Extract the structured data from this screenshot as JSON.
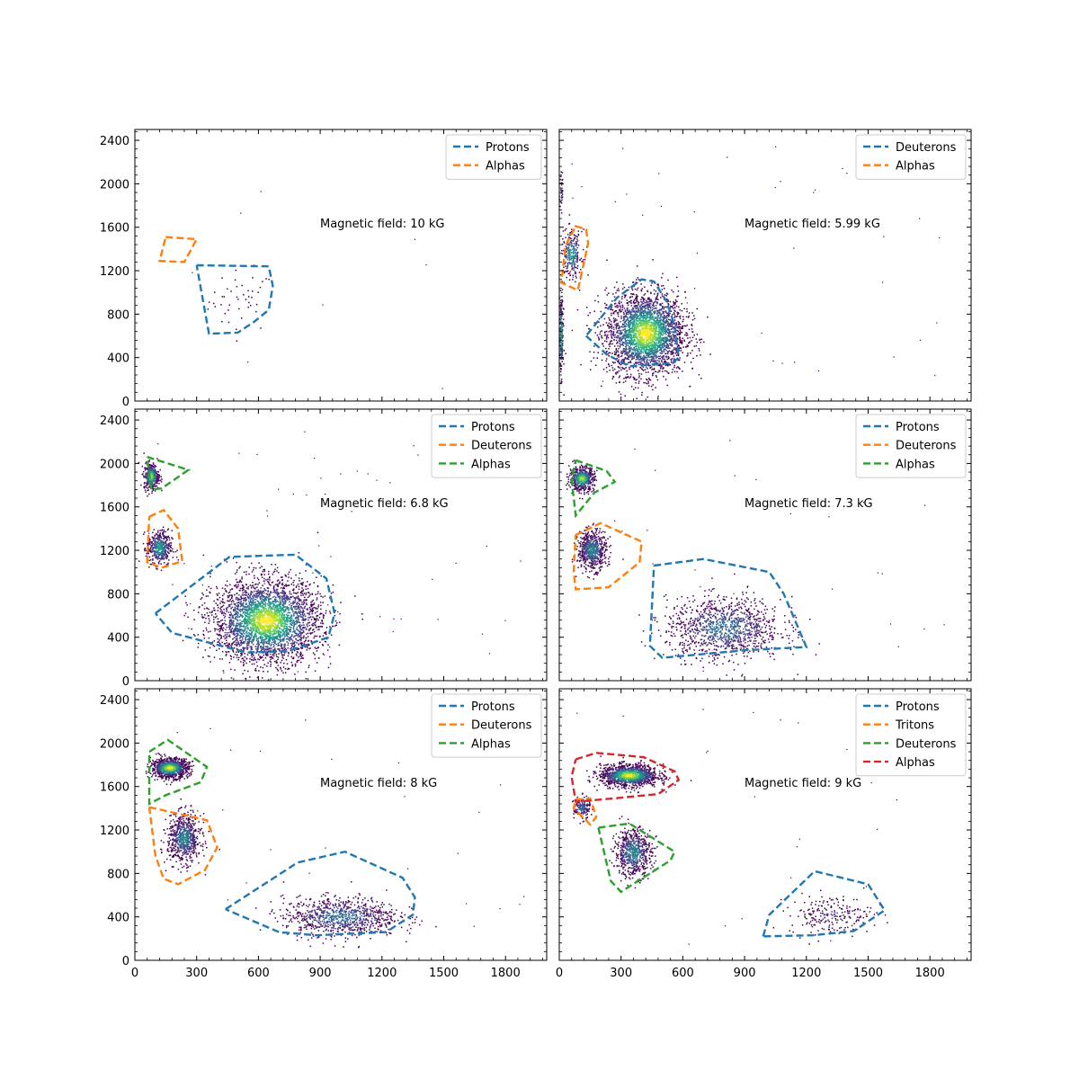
{
  "chart_data": [
    {
      "type": "scatter",
      "subtype": "2d-histogram-with-gates",
      "xlim": [
        0,
        2000
      ],
      "ylim": [
        0,
        2500
      ],
      "xticks": [
        "0",
        "300",
        "600",
        "900",
        "1200",
        "1500",
        "1800"
      ],
      "yticks": [
        "0",
        "400",
        "800",
        "1200",
        "1600",
        "2000",
        "2400"
      ],
      "annotation": "Magnetic field: 10 kG",
      "legend_position": "upper right",
      "gates": [
        {
          "name": "Protons",
          "color": "#1f77b4",
          "points": [
            [
              300,
              1250
            ],
            [
              650,
              1240
            ],
            [
              670,
              1060
            ],
            [
              650,
              840
            ],
            [
              580,
              730
            ],
            [
              500,
              630
            ],
            [
              360,
              620
            ],
            [
              300,
              1250
            ]
          ]
        },
        {
          "name": "Alphas",
          "color": "#ff7f0e",
          "points": [
            [
              150,
              1510
            ],
            [
              300,
              1490
            ],
            [
              240,
              1280
            ],
            [
              120,
              1290
            ],
            [
              150,
              1510
            ]
          ]
        }
      ],
      "clusters": [
        {
          "cx": 520,
          "cy": 920,
          "sx": 80,
          "sy": 140,
          "n": 45,
          "peak": 0.1
        }
      ],
      "noise": 10
    },
    {
      "type": "scatter",
      "subtype": "2d-histogram-with-gates",
      "xlim": [
        0,
        2000
      ],
      "ylim": [
        0,
        2500
      ],
      "xticks": [
        "0",
        "300",
        "600",
        "900",
        "1200",
        "1500",
        "1800"
      ],
      "yticks": [
        "0",
        "400",
        "800",
        "1200",
        "1600",
        "2000",
        "2400"
      ],
      "annotation": "Magnetic field: 5.99 kG",
      "legend_position": "upper right",
      "gates": [
        {
          "name": "Deuterons",
          "color": "#1f77b4",
          "points": [
            [
              130,
              600
            ],
            [
              230,
              430
            ],
            [
              340,
              320
            ],
            [
              550,
              350
            ],
            [
              580,
              400
            ],
            [
              560,
              700
            ],
            [
              520,
              920
            ],
            [
              460,
              1100
            ],
            [
              400,
              1120
            ],
            [
              280,
              950
            ],
            [
              130,
              600
            ]
          ]
        },
        {
          "name": "Alphas",
          "color": "#ff7f0e",
          "points": [
            [
              80,
              1610
            ],
            [
              130,
              1580
            ],
            [
              140,
              1450
            ],
            [
              110,
              1190
            ],
            [
              90,
              1020
            ],
            [
              10,
              1090
            ],
            [
              30,
              1430
            ],
            [
              80,
              1610
            ]
          ]
        }
      ],
      "clusters": [
        {
          "cx": 420,
          "cy": 620,
          "sx": 95,
          "sy": 190,
          "n": 2800,
          "peak": 1.0
        },
        {
          "cx": 60,
          "cy": 1350,
          "sx": 25,
          "sy": 110,
          "n": 260,
          "peak": 0.6
        },
        {
          "cx": 10,
          "cy": 600,
          "sx": 5,
          "sy": 180,
          "n": 220,
          "peak": 0.7
        },
        {
          "cx": 10,
          "cy": 1950,
          "sx": 5,
          "sy": 120,
          "n": 40,
          "peak": 0.2
        }
      ],
      "noise": 40
    },
    {
      "type": "scatter",
      "subtype": "2d-histogram-with-gates",
      "xlim": [
        0,
        2000
      ],
      "ylim": [
        0,
        2500
      ],
      "xticks": [
        "0",
        "300",
        "600",
        "900",
        "1200",
        "1500",
        "1800"
      ],
      "yticks": [
        "0",
        "400",
        "800",
        "1200",
        "1600",
        "2000",
        "2400"
      ],
      "annotation": "Magnetic field: 6.8 kG",
      "legend_position": "upper right",
      "gates": [
        {
          "name": "Protons",
          "color": "#1f77b4",
          "points": [
            [
              100,
              620
            ],
            [
              460,
              1140
            ],
            [
              780,
              1160
            ],
            [
              930,
              940
            ],
            [
              970,
              620
            ],
            [
              940,
              400
            ],
            [
              740,
              270
            ],
            [
              540,
              260
            ],
            [
              180,
              440
            ],
            [
              100,
              620
            ]
          ]
        },
        {
          "name": "Deuterons",
          "color": "#ff7f0e",
          "points": [
            [
              70,
              1510
            ],
            [
              140,
              1570
            ],
            [
              210,
              1400
            ],
            [
              230,
              1100
            ],
            [
              130,
              1040
            ],
            [
              60,
              1090
            ],
            [
              70,
              1510
            ]
          ]
        },
        {
          "name": "Alphas",
          "color": "#2ca02c",
          "points": [
            [
              60,
              2060
            ],
            [
              260,
              1940
            ],
            [
              130,
              1770
            ],
            [
              80,
              1760
            ],
            [
              60,
              2060
            ]
          ]
        }
      ],
      "clusters": [
        {
          "cx": 640,
          "cy": 550,
          "sx": 130,
          "sy": 190,
          "n": 3200,
          "peak": 1.0
        },
        {
          "cx": 120,
          "cy": 1220,
          "sx": 30,
          "sy": 80,
          "n": 420,
          "peak": 0.6
        },
        {
          "cx": 80,
          "cy": 1880,
          "sx": 18,
          "sy": 60,
          "n": 380,
          "peak": 0.9
        }
      ],
      "noise": 60
    },
    {
      "type": "scatter",
      "subtype": "2d-histogram-with-gates",
      "xlim": [
        0,
        2000
      ],
      "ylim": [
        0,
        2500
      ],
      "xticks": [
        "0",
        "300",
        "600",
        "900",
        "1200",
        "1500",
        "1800"
      ],
      "yticks": [
        "0",
        "400",
        "800",
        "1200",
        "1600",
        "2000",
        "2400"
      ],
      "annotation": "Magnetic field: 7.3 kG",
      "legend_position": "upper right",
      "gates": [
        {
          "name": "Protons",
          "color": "#1f77b4",
          "points": [
            [
              460,
              1060
            ],
            [
              700,
              1120
            ],
            [
              1020,
              1000
            ],
            [
              1090,
              800
            ],
            [
              1200,
              310
            ],
            [
              900,
              280
            ],
            [
              500,
              210
            ],
            [
              440,
              320
            ],
            [
              460,
              1060
            ]
          ]
        },
        {
          "name": "Deuterons",
          "color": "#ff7f0e",
          "points": [
            [
              80,
              1340
            ],
            [
              200,
              1450
            ],
            [
              400,
              1280
            ],
            [
              390,
              1090
            ],
            [
              240,
              860
            ],
            [
              80,
              840
            ],
            [
              70,
              1000
            ],
            [
              80,
              1340
            ]
          ]
        },
        {
          "name": "Alphas",
          "color": "#2ca02c",
          "points": [
            [
              80,
              2030
            ],
            [
              230,
              1930
            ],
            [
              270,
              1830
            ],
            [
              170,
              1730
            ],
            [
              80,
              1520
            ],
            [
              60,
              1850
            ],
            [
              80,
              2030
            ]
          ]
        }
      ],
      "clusters": [
        {
          "cx": 800,
          "cy": 480,
          "sx": 140,
          "sy": 140,
          "n": 1100,
          "peak": 0.4
        },
        {
          "cx": 160,
          "cy": 1200,
          "sx": 35,
          "sy": 90,
          "n": 600,
          "peak": 0.5
        },
        {
          "cx": 110,
          "cy": 1860,
          "sx": 30,
          "sy": 55,
          "n": 550,
          "peak": 0.9
        }
      ],
      "noise": 25
    },
    {
      "type": "scatter",
      "subtype": "2d-histogram-with-gates",
      "xlim": [
        0,
        2000
      ],
      "ylim": [
        0,
        2500
      ],
      "xticks": [
        "0",
        "300",
        "600",
        "900",
        "1200",
        "1500",
        "1800"
      ],
      "yticks": [
        "0",
        "400",
        "800",
        "1200",
        "1600",
        "2000",
        "2400"
      ],
      "annotation": "Magnetic field: 8 kG",
      "legend_position": "upper right",
      "gates": [
        {
          "name": "Protons",
          "color": "#1f77b4",
          "points": [
            [
              440,
              470
            ],
            [
              790,
              900
            ],
            [
              1020,
              1000
            ],
            [
              1300,
              760
            ],
            [
              1360,
              580
            ],
            [
              1350,
              420
            ],
            [
              1220,
              260
            ],
            [
              880,
              230
            ],
            [
              700,
              260
            ],
            [
              440,
              470
            ]
          ]
        },
        {
          "name": "Deuterons",
          "color": "#ff7f0e",
          "points": [
            [
              70,
              1410
            ],
            [
              350,
              1290
            ],
            [
              400,
              1040
            ],
            [
              340,
              830
            ],
            [
              210,
              700
            ],
            [
              140,
              750
            ],
            [
              100,
              960
            ],
            [
              70,
              1410
            ]
          ]
        },
        {
          "name": "Alphas",
          "color": "#2ca02c",
          "points": [
            [
              70,
              1920
            ],
            [
              160,
              2030
            ],
            [
              350,
              1780
            ],
            [
              320,
              1640
            ],
            [
              150,
              1520
            ],
            [
              70,
              1440
            ],
            [
              70,
              1920
            ]
          ]
        }
      ],
      "clusters": [
        {
          "cx": 1000,
          "cy": 400,
          "sx": 140,
          "sy": 90,
          "n": 900,
          "peak": 0.4
        },
        {
          "cx": 240,
          "cy": 1120,
          "sx": 40,
          "sy": 110,
          "n": 700,
          "peak": 0.5
        },
        {
          "cx": 170,
          "cy": 1770,
          "sx": 45,
          "sy": 45,
          "n": 1000,
          "peak": 1.0
        }
      ],
      "noise": 25
    },
    {
      "type": "scatter",
      "subtype": "2d-histogram-with-gates",
      "xlim": [
        0,
        2000
      ],
      "ylim": [
        0,
        2500
      ],
      "xticks": [
        "0",
        "300",
        "600",
        "900",
        "1200",
        "1500",
        "1800"
      ],
      "yticks": [
        "0",
        "400",
        "800",
        "1200",
        "1600",
        "2000",
        "2400"
      ],
      "annotation": "Magnetic field: 9 kG",
      "legend_position": "upper right",
      "gates": [
        {
          "name": "Protons",
          "color": "#1f77b4",
          "points": [
            [
              990,
              220
            ],
            [
              1020,
              420
            ],
            [
              1240,
              820
            ],
            [
              1500,
              700
            ],
            [
              1580,
              460
            ],
            [
              1430,
              270
            ],
            [
              1230,
              230
            ],
            [
              990,
              220
            ]
          ]
        },
        {
          "name": "Tritons",
          "color": "#ff7f0e",
          "points": [
            [
              80,
              1480
            ],
            [
              150,
              1490
            ],
            [
              180,
              1320
            ],
            [
              150,
              1250
            ],
            [
              70,
              1400
            ],
            [
              80,
              1480
            ]
          ]
        },
        {
          "name": "Deuterons",
          "color": "#2ca02c",
          "points": [
            [
              190,
              1220
            ],
            [
              340,
              1260
            ],
            [
              560,
              1000
            ],
            [
              540,
              920
            ],
            [
              390,
              740
            ],
            [
              300,
              630
            ],
            [
              250,
              730
            ],
            [
              190,
              1220
            ]
          ]
        },
        {
          "name": "Alphas",
          "color": "#d62728",
          "points": [
            [
              80,
              1850
            ],
            [
              180,
              1910
            ],
            [
              410,
              1870
            ],
            [
              560,
              1740
            ],
            [
              580,
              1660
            ],
            [
              480,
              1530
            ],
            [
              260,
              1490
            ],
            [
              80,
              1460
            ],
            [
              60,
              1690
            ],
            [
              80,
              1850
            ]
          ]
        }
      ],
      "clusters": [
        {
          "cx": 1320,
          "cy": 420,
          "sx": 100,
          "sy": 90,
          "n": 220,
          "peak": 0.15
        },
        {
          "cx": 340,
          "cy": 1700,
          "sx": 70,
          "sy": 50,
          "n": 1300,
          "peak": 1.0
        },
        {
          "cx": 110,
          "cy": 1400,
          "sx": 20,
          "sy": 50,
          "n": 160,
          "peak": 0.4
        },
        {
          "cx": 360,
          "cy": 990,
          "sx": 45,
          "sy": 110,
          "n": 650,
          "peak": 0.5
        }
      ],
      "noise": 25
    }
  ]
}
